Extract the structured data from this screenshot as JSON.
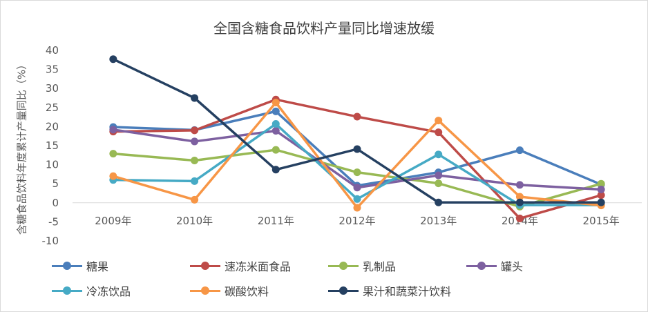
{
  "chart_data": {
    "type": "line",
    "title": "全国含糖食品饮料产量同比增速放缓",
    "ylabel": "含糖食品饮料年度累计产量同比（%）",
    "categories": [
      "2009年",
      "2010年",
      "2011年",
      "2012年",
      "2013年",
      "2014年",
      "2015年"
    ],
    "yticks": [
      "40",
      "35",
      "30",
      "25",
      "20",
      "15",
      "10",
      "5",
      "0",
      "-5",
      "-10"
    ],
    "ylim": [
      -10,
      40
    ],
    "grid": false,
    "legend_position": "bottom",
    "series": [
      {
        "name": "糖果",
        "color": "#4a7ebb",
        "values": [
          19.9,
          19.1,
          24.0,
          4.5,
          8.0,
          13.8,
          4.8
        ]
      },
      {
        "name": "速冻米面食品",
        "color": "#be4b48",
        "values": [
          18.7,
          19.0,
          27.1,
          22.6,
          18.5,
          -4.1,
          2.0
        ]
      },
      {
        "name": "乳制品",
        "color": "#98b954",
        "values": [
          12.9,
          11.1,
          13.9,
          8.0,
          5.1,
          -1.0,
          5.0
        ]
      },
      {
        "name": "罐头",
        "color": "#7d60a0",
        "values": [
          19.2,
          16.1,
          18.9,
          4.0,
          7.2,
          4.7,
          3.5
        ]
      },
      {
        "name": "冷冻饮品",
        "color": "#46aac5",
        "values": [
          6.0,
          5.7,
          20.7,
          1.0,
          12.7,
          -0.6,
          -0.6
        ]
      },
      {
        "name": "碳酸饮料",
        "color": "#f79646",
        "values": [
          7.0,
          0.8,
          26.3,
          -1.3,
          21.6,
          1.6,
          -0.7
        ]
      },
      {
        "name": "果汁和蔬菜汁饮料",
        "color": "#254061",
        "values": [
          37.7,
          27.5,
          8.7,
          14.1,
          0.1,
          0.1,
          0.1
        ]
      }
    ]
  }
}
